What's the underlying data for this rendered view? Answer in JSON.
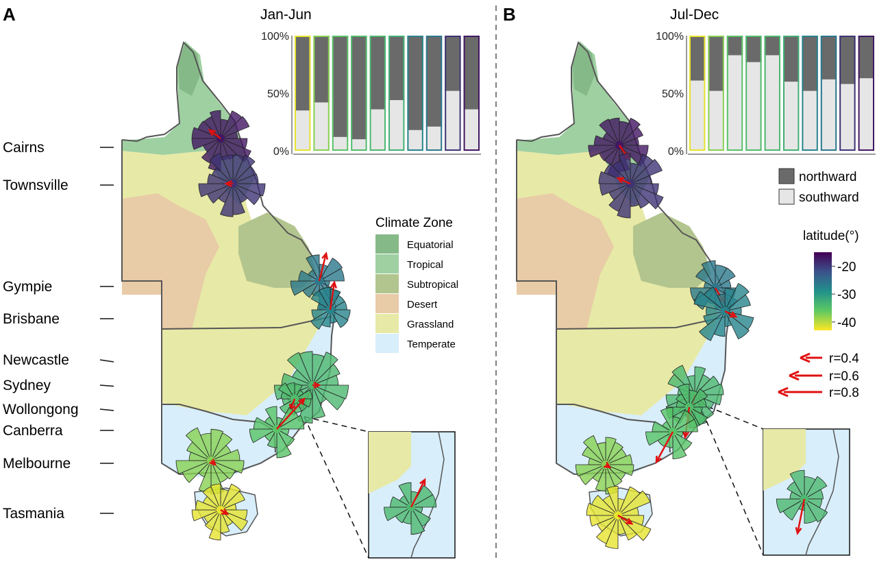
{
  "panels": [
    {
      "letter": "A",
      "title": "Jan-Jun"
    },
    {
      "letter": "B",
      "title": "Jul-Dec"
    }
  ],
  "cities": [
    "Cairns",
    "Townsville",
    "Gympie",
    "Brisbane",
    "Newcastle",
    "Sydney",
    "Wollongong",
    "Canberra",
    "Melbourne",
    "Tasmania"
  ],
  "climate_legend": {
    "title": "Climate Zone",
    "items": [
      {
        "label": "Equatorial",
        "color": "#86b988"
      },
      {
        "label": "Tropical",
        "color": "#9fd0a2"
      },
      {
        "label": "Subtropical",
        "color": "#b3c58e"
      },
      {
        "label": "Desert",
        "color": "#e8cba7"
      },
      {
        "label": "Grassland",
        "color": "#e7e9a6"
      },
      {
        "label": "Temperate",
        "color": "#d8eefa"
      }
    ]
  },
  "direction_legend": {
    "items": [
      {
        "label": "northward",
        "color": "#6a6a6a"
      },
      {
        "label": "southward",
        "color": "#e6e6e6"
      }
    ]
  },
  "latitude_legend": {
    "title": "latitude(°)",
    "ticks": [
      "-20",
      "-30",
      "-40"
    ],
    "tick_values": [
      -20,
      -30,
      -40
    ],
    "range": [
      -43,
      -15
    ]
  },
  "arrow_legend": [
    "r=0.4",
    "r=0.6",
    "r=0.8"
  ],
  "arrow_legend_values": [
    0.4,
    0.6,
    0.8
  ],
  "chart_data": [
    {
      "type": "bar",
      "title": "Jan-Jun",
      "ylabel": "",
      "yticks": [
        "0%",
        "50%",
        "100%"
      ],
      "ylim": [
        0,
        100
      ],
      "categories": [
        "Tasmania",
        "Melbourne",
        "Canberra",
        "Wollongong",
        "Sydney",
        "Newcastle",
        "Brisbane",
        "Gympie",
        "Townsville",
        "Cairns"
      ],
      "latitude": [
        -42,
        -37.8,
        -35.3,
        -34.4,
        -33.9,
        -32.9,
        -27.5,
        -26.2,
        -19.3,
        -16.9
      ],
      "series": [
        {
          "name": "southward",
          "values": [
            35,
            42,
            12,
            10,
            36,
            44,
            18,
            21,
            52,
            36
          ]
        },
        {
          "name": "northward",
          "values": [
            65,
            58,
            88,
            90,
            64,
            56,
            82,
            79,
            48,
            64
          ]
        }
      ]
    },
    {
      "type": "bar",
      "title": "Jul-Dec",
      "ylabel": "",
      "yticks": [
        "0%",
        "50%",
        "100%"
      ],
      "ylim": [
        0,
        100
      ],
      "categories": [
        "Tasmania",
        "Melbourne",
        "Canberra",
        "Wollongong",
        "Sydney",
        "Newcastle",
        "Brisbane",
        "Gympie",
        "Townsville",
        "Cairns"
      ],
      "latitude": [
        -42,
        -37.8,
        -35.3,
        -34.4,
        -33.9,
        -32.9,
        -27.5,
        -26.2,
        -19.3,
        -16.9
      ],
      "series": [
        {
          "name": "southward",
          "values": [
            61,
            52,
            83,
            77,
            83,
            60,
            52,
            62,
            58,
            63
          ]
        },
        {
          "name": "northward",
          "values": [
            39,
            48,
            17,
            23,
            17,
            40,
            48,
            38,
            42,
            37
          ]
        }
      ]
    }
  ]
}
